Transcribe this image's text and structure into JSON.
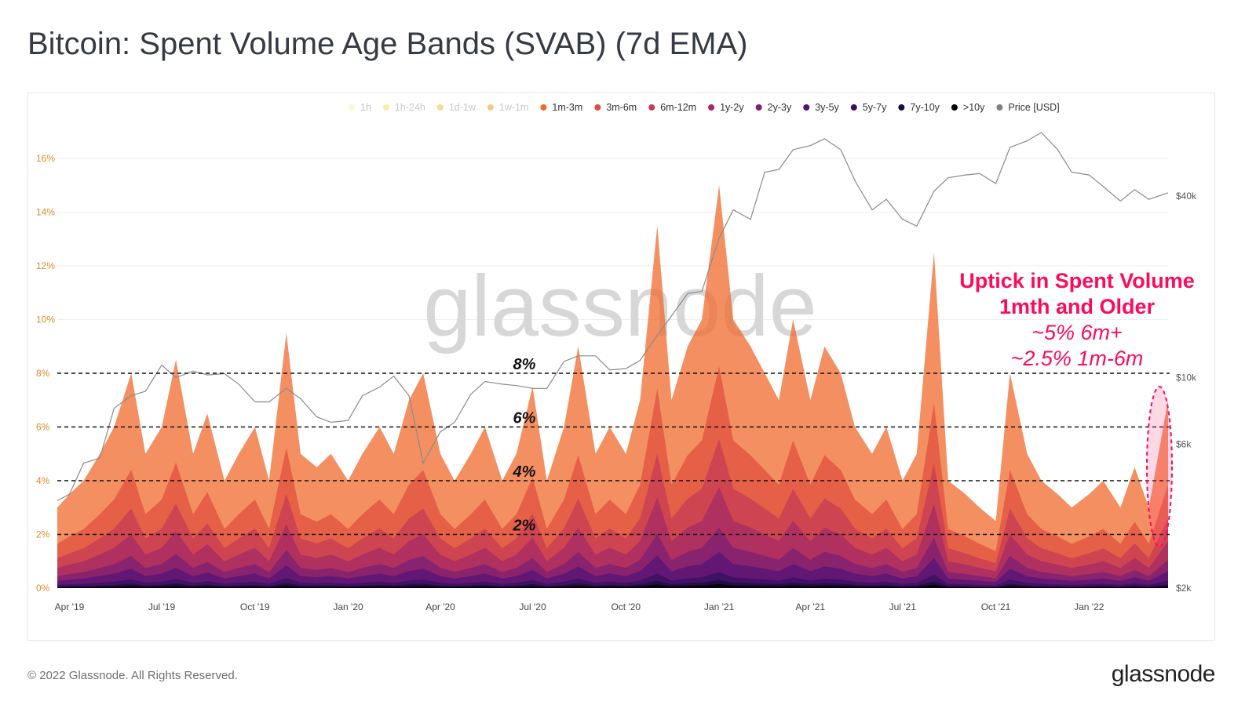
{
  "title": "Bitcoin: Spent Volume Age Bands (SVAB) (7d EMA)",
  "footer": "© 2022 Glassnode. All Rights Reserved.",
  "logo": "glassnode",
  "watermark": "glassnode",
  "chart_data": {
    "type": "area",
    "title": "Bitcoin: Spent Volume Age Bands (SVAB) (7d EMA)",
    "legend_placement": "top-right",
    "legend": [
      {
        "name": "1h",
        "color": "#f7f59a",
        "hidden": true
      },
      {
        "name": "1h-24h",
        "color": "#f4dc52",
        "hidden": true
      },
      {
        "name": "1d-1w",
        "color": "#f7b51f",
        "hidden": true
      },
      {
        "name": "1w-1m",
        "color": "#f68c12",
        "hidden": true
      },
      {
        "name": "1m-3m",
        "color": "#f06a2c"
      },
      {
        "name": "3m-6m",
        "color": "#e0503d"
      },
      {
        "name": "6m-12m",
        "color": "#c63b54"
      },
      {
        "name": "1y-2y",
        "color": "#a52a66"
      },
      {
        "name": "2y-3y",
        "color": "#7e1f73"
      },
      {
        "name": "3y-5y",
        "color": "#561477"
      },
      {
        "name": "5y-7y",
        "color": "#351062"
      },
      {
        "name": "7y-10y",
        "color": "#1a0c3a"
      },
      {
        "name": ">10y",
        "color": "#000000"
      },
      {
        "name": "Price [USD]",
        "color": "#808080"
      }
    ],
    "band_shares": {
      "1m-3m": 0.45,
      "3m-6m": 0.18,
      "6m-12m": 0.12,
      "1y-2y": 0.1,
      "2y-3y": 0.06,
      "3y-5y": 0.05,
      "5y-7y": 0.02,
      "7y-10y": 0.01,
      ">10y": 0.01
    },
    "y_left": {
      "ticks": [
        "0%",
        "2%",
        "4%",
        "6%",
        "8%",
        "10%",
        "12%",
        "14%",
        "16%"
      ],
      "range": [
        0,
        17.5
      ]
    },
    "y_right": {
      "scale": "log",
      "ticks": [
        "$2k",
        "$6k",
        "$10k",
        "$40k"
      ],
      "tick_values": [
        2000,
        6000,
        10000,
        40000
      ]
    },
    "x_ticks": [
      {
        "label": "Apr '19",
        "date": "2019-04-01"
      },
      {
        "label": "Jul '19",
        "date": "2019-07-01"
      },
      {
        "label": "Oct '19",
        "date": "2019-10-01"
      },
      {
        "label": "Jan '20",
        "date": "2020-01-01"
      },
      {
        "label": "Apr '20",
        "date": "2020-04-01"
      },
      {
        "label": "Jul '20",
        "date": "2020-07-01"
      },
      {
        "label": "Oct '20",
        "date": "2020-10-01"
      },
      {
        "label": "Jan '21",
        "date": "2021-01-01"
      },
      {
        "label": "Apr '21",
        "date": "2021-04-01"
      },
      {
        "label": "Jul '21",
        "date": "2021-07-01"
      },
      {
        "label": "Oct '21",
        "date": "2021-10-01"
      },
      {
        "label": "Jan '22",
        "date": "2022-01-01"
      }
    ],
    "x_range": [
      "2019-03-20",
      "2022-03-20"
    ],
    "dates": [
      "2019-03-20",
      "2019-04-01",
      "2019-04-15",
      "2019-05-01",
      "2019-05-15",
      "2019-06-01",
      "2019-06-15",
      "2019-07-01",
      "2019-07-15",
      "2019-08-01",
      "2019-08-15",
      "2019-09-01",
      "2019-09-15",
      "2019-10-01",
      "2019-10-15",
      "2019-11-01",
      "2019-11-15",
      "2019-12-01",
      "2019-12-15",
      "2020-01-01",
      "2020-01-15",
      "2020-02-01",
      "2020-02-15",
      "2020-03-01",
      "2020-03-15",
      "2020-04-01",
      "2020-04-15",
      "2020-05-01",
      "2020-05-15",
      "2020-06-01",
      "2020-06-15",
      "2020-07-01",
      "2020-07-15",
      "2020-08-01",
      "2020-08-15",
      "2020-09-01",
      "2020-09-15",
      "2020-10-01",
      "2020-10-15",
      "2020-11-01",
      "2020-11-15",
      "2020-12-01",
      "2020-12-15",
      "2021-01-01",
      "2021-01-15",
      "2021-02-01",
      "2021-02-15",
      "2021-03-01",
      "2021-03-15",
      "2021-04-01",
      "2021-04-15",
      "2021-05-01",
      "2021-05-15",
      "2021-06-01",
      "2021-06-15",
      "2021-07-01",
      "2021-07-15",
      "2021-08-01",
      "2021-08-15",
      "2021-09-01",
      "2021-09-15",
      "2021-10-01",
      "2021-10-15",
      "2021-11-01",
      "2021-11-15",
      "2021-12-01",
      "2021-12-15",
      "2022-01-01",
      "2022-01-15",
      "2022-02-01",
      "2022-02-15",
      "2022-03-01",
      "2022-03-20"
    ],
    "spent_volume_1m_plus_pct": [
      3,
      3.5,
      4,
      5,
      6,
      8,
      5,
      6,
      8.5,
      5,
      6.5,
      4,
      5,
      6,
      4,
      9.5,
      5,
      4.5,
      5,
      4,
      5,
      6,
      5,
      7,
      8,
      5,
      4,
      5,
      6,
      4,
      5,
      7.5,
      4,
      6,
      9,
      5,
      6,
      5,
      7,
      13.5,
      7,
      9,
      10,
      15,
      10,
      9,
      8,
      7,
      10,
      7,
      9,
      8,
      6,
      5,
      6,
      4,
      5,
      12.5,
      4,
      3.5,
      3,
      2.5,
      8,
      5,
      4,
      3.5,
      3,
      3.5,
      4,
      3,
      4.5,
      3,
      7
    ],
    "price_usd": [
      3900,
      4100,
      5200,
      5400,
      7900,
      8700,
      9000,
      11000,
      10000,
      10500,
      10200,
      10300,
      9500,
      8300,
      8300,
      9200,
      8500,
      7400,
      7100,
      7200,
      8700,
      9300,
      10100,
      8700,
      5200,
      6600,
      7100,
      8800,
      9700,
      9500,
      9400,
      9200,
      9200,
      11300,
      11800,
      11800,
      10600,
      10700,
      11400,
      13800,
      16000,
      19000,
      19300,
      29000,
      36000,
      33500,
      48000,
      49000,
      57000,
      58800,
      62000,
      57000,
      45000,
      36000,
      39000,
      33500,
      31800,
      41500,
      46000,
      47000,
      47500,
      44000,
      58000,
      61000,
      65000,
      57000,
      48000,
      47000,
      43000,
      38500,
      42000,
      39000,
      41000
    ],
    "reference_lines": [
      {
        "value": 2,
        "label": "2%"
      },
      {
        "value": 4,
        "label": "4%"
      },
      {
        "value": 6,
        "label": "6%"
      },
      {
        "value": 8,
        "label": "8%"
      }
    ],
    "annotation": {
      "line1": "Uptick in Spent Volume",
      "line2": "1mth and Older",
      "line3": "~5% 6m+",
      "line4": "~2.5% 1m-6m",
      "color": "#ff0a5a"
    }
  }
}
